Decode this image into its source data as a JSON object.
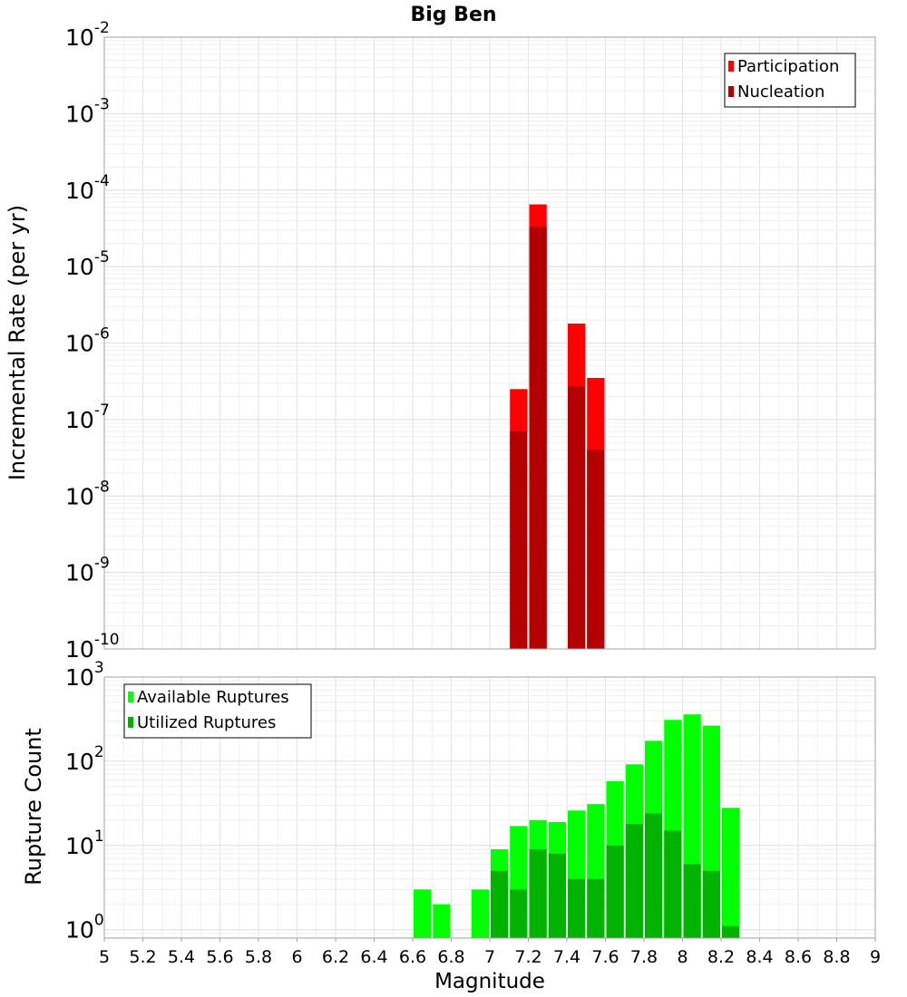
{
  "title": "Big Ben",
  "chart_data": [
    {
      "type": "bar",
      "scale": "log",
      "title": "Big Ben",
      "xlabel": "Magnitude",
      "ylabel": "Incremental Rate (per yr)",
      "xlim": [
        5,
        9
      ],
      "ylim_exp": [
        -10,
        -2
      ],
      "y_tick_base": "10",
      "y_tick_exponents": [
        "-10",
        "-9",
        "-8",
        "-7",
        "-6",
        "-5",
        "-4",
        "-3",
        "-2"
      ],
      "bin_width": 0.1,
      "series": [
        {
          "name": "Participation",
          "color": "#ff0000",
          "points": [
            {
              "x": 7.15,
              "y": 2.5e-07
            },
            {
              "x": 7.25,
              "y": 6.5e-05
            },
            {
              "x": 7.45,
              "y": 1.8e-06
            },
            {
              "x": 7.55,
              "y": 3.5e-07
            }
          ]
        },
        {
          "name": "Nucleation",
          "color": "#b30000",
          "points": [
            {
              "x": 7.15,
              "y": 7e-08
            },
            {
              "x": 7.25,
              "y": 3.3e-05
            },
            {
              "x": 7.45,
              "y": 2.7e-07
            },
            {
              "x": 7.55,
              "y": 4e-08
            }
          ]
        }
      ],
      "legend_position": "top-right"
    },
    {
      "type": "bar",
      "scale": "log",
      "xlabel": "Magnitude",
      "ylabel": "Rupture Count",
      "xlim": [
        5,
        9
      ],
      "x_ticks": [
        "5",
        "5.2",
        "5.4",
        "5.6",
        "5.8",
        "6",
        "6.2",
        "6.4",
        "6.6",
        "6.8",
        "7",
        "7.2",
        "7.4",
        "7.6",
        "7.8",
        "8",
        "8.2",
        "8.4",
        "8.6",
        "8.8",
        "9"
      ],
      "ylim_exp": [
        -0.1,
        3
      ],
      "y_tick_base": "10",
      "y_tick_exponents": [
        "0",
        "1",
        "2",
        "3"
      ],
      "bin_width": 0.1,
      "series": [
        {
          "name": "Available Ruptures",
          "color": "#00ff00",
          "points": [
            {
              "x": 6.65,
              "y": 3
            },
            {
              "x": 6.75,
              "y": 2
            },
            {
              "x": 6.95,
              "y": 3
            },
            {
              "x": 7.05,
              "y": 9
            },
            {
              "x": 7.15,
              "y": 17
            },
            {
              "x": 7.25,
              "y": 20
            },
            {
              "x": 7.35,
              "y": 19
            },
            {
              "x": 7.45,
              "y": 26
            },
            {
              "x": 7.55,
              "y": 31
            },
            {
              "x": 7.65,
              "y": 58
            },
            {
              "x": 7.75,
              "y": 92
            },
            {
              "x": 7.85,
              "y": 175
            },
            {
              "x": 7.95,
              "y": 310
            },
            {
              "x": 8.05,
              "y": 360
            },
            {
              "x": 8.15,
              "y": 265
            },
            {
              "x": 8.25,
              "y": 28
            }
          ]
        },
        {
          "name": "Utilized Ruptures",
          "color": "#00b300",
          "points": [
            {
              "x": 7.05,
              "y": 5
            },
            {
              "x": 7.15,
              "y": 3
            },
            {
              "x": 7.25,
              "y": 9
            },
            {
              "x": 7.35,
              "y": 8
            },
            {
              "x": 7.45,
              "y": 4
            },
            {
              "x": 7.55,
              "y": 4
            },
            {
              "x": 7.65,
              "y": 10
            },
            {
              "x": 7.75,
              "y": 18
            },
            {
              "x": 7.85,
              "y": 24
            },
            {
              "x": 7.95,
              "y": 15
            },
            {
              "x": 8.05,
              "y": 6
            },
            {
              "x": 8.15,
              "y": 5
            },
            {
              "x": 8.25,
              "y": 1.1
            }
          ]
        }
      ],
      "legend_position": "top-left"
    }
  ]
}
